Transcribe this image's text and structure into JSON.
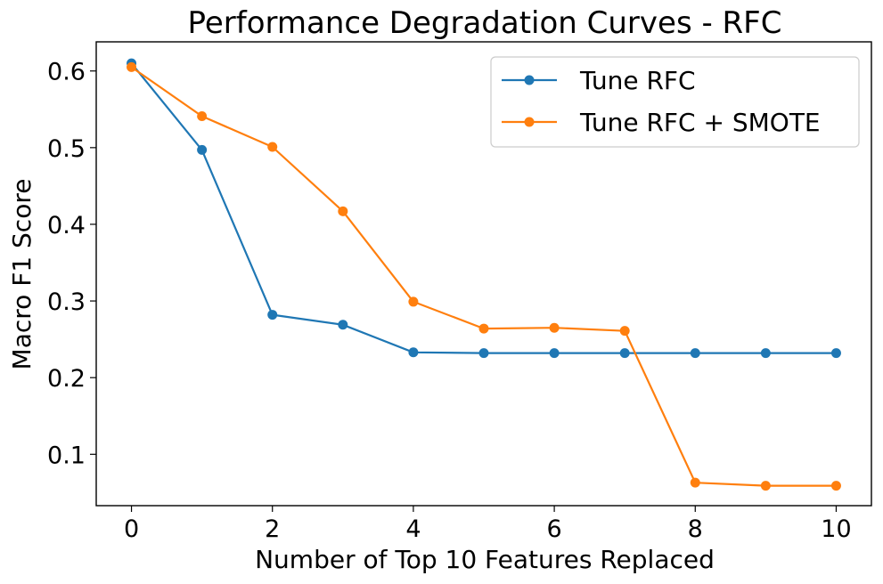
{
  "chart_data": {
    "type": "line",
    "title": "Performance Degradation Curves - RFC",
    "xlabel": "Number of Top 10 Features Replaced",
    "ylabel": "Macro F1 Score",
    "x": [
      0,
      1,
      2,
      3,
      4,
      5,
      6,
      7,
      8,
      9,
      10
    ],
    "xlim": [
      -0.5,
      10.5
    ],
    "ylim": [
      0.033,
      0.638
    ],
    "xticks": [
      0,
      2,
      4,
      6,
      8,
      10
    ],
    "yticks": [
      0.1,
      0.2,
      0.3,
      0.4,
      0.5,
      0.6
    ],
    "xtick_labels": [
      "0",
      "2",
      "4",
      "6",
      "8",
      "10"
    ],
    "ytick_labels": [
      "0.1",
      "0.2",
      "0.3",
      "0.4",
      "0.5",
      "0.6"
    ],
    "grid": false,
    "legend_position": "upper right",
    "series": [
      {
        "name": "Tune RFC",
        "color": "#1f77b4",
        "marker": "circle",
        "values": [
          0.61,
          0.497,
          0.282,
          0.269,
          0.233,
          0.232,
          0.232,
          0.232,
          0.232,
          0.232,
          0.232
        ]
      },
      {
        "name": "Tune RFC + SMOTE",
        "color": "#ff7f0e",
        "marker": "circle",
        "values": [
          0.605,
          0.541,
          0.501,
          0.417,
          0.299,
          0.264,
          0.265,
          0.261,
          0.063,
          0.059,
          0.059
        ]
      }
    ]
  }
}
